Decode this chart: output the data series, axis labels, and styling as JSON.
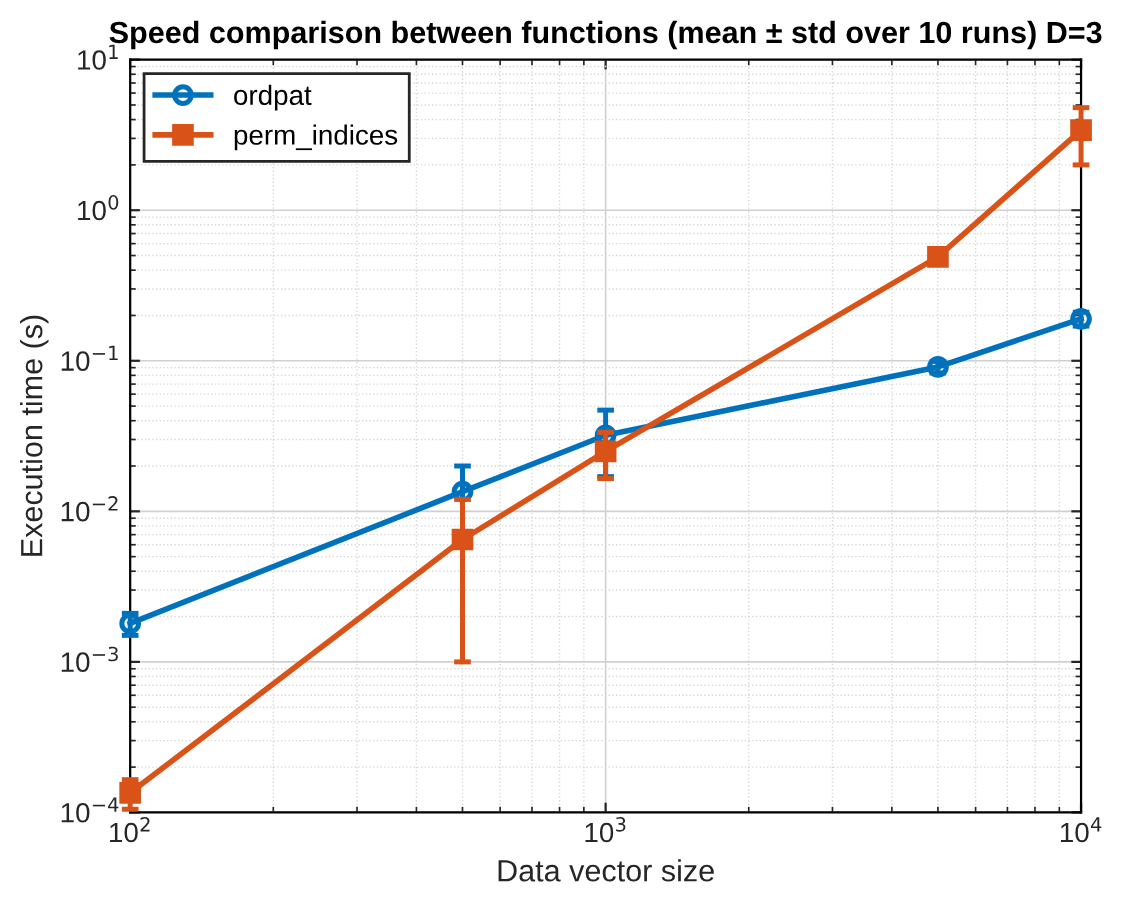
{
  "chart_data": {
    "type": "line",
    "title": "Speed comparison between functions (mean ± std over 10 runs) D=3",
    "xlabel": "Data vector size",
    "ylabel": "Execution time (s)",
    "x": [
      100,
      500,
      1000,
      5000,
      10000
    ],
    "series": [
      {
        "name": "ordpat",
        "color": "#0072bd",
        "marker": "circle",
        "values": [
          0.0018,
          0.0135,
          0.032,
          0.091,
          0.19
        ],
        "errors": [
          0.0003,
          0.0065,
          0.015,
          0.008,
          0.02
        ]
      },
      {
        "name": "perm_indices",
        "color": "#d95319",
        "marker": "square",
        "values": [
          0.000135,
          0.0065,
          0.025,
          0.49,
          3.4
        ],
        "errors": [
          3e-05,
          0.0055,
          0.0085,
          0.04,
          1.4
        ]
      }
    ],
    "log": "xy",
    "xlim": [
      100,
      10000
    ],
    "ylim": [
      0.0001,
      10
    ],
    "xticks": [
      {
        "value": 100,
        "label": "10$^{2}$"
      },
      {
        "value": 1000,
        "label": "10$^{3}$"
      },
      {
        "value": 10000,
        "label": "10$^{4}$"
      }
    ],
    "yticks": [
      {
        "value": 0.0001,
        "label": "10$^{−4}$"
      },
      {
        "value": 0.001,
        "label": "10$^{−3}$"
      },
      {
        "value": 0.01,
        "label": "10$^{−2}$"
      },
      {
        "value": 0.1,
        "label": "10$^{−1}$"
      },
      {
        "value": 1,
        "label": "10$^{0}$"
      },
      {
        "value": 10,
        "label": "10$^{1}$"
      }
    ],
    "grid": true,
    "legend": "top left"
  }
}
